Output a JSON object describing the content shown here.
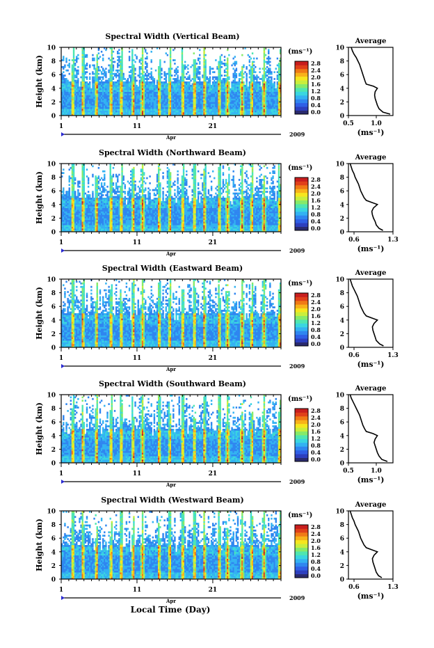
{
  "figure": {
    "x_common_label": "Local Time (Day)",
    "month_label": "Apr",
    "year_label": "2009",
    "x_ticks": [
      "1",
      "11",
      "21"
    ],
    "y_label": "Height (km)",
    "colorbar_unit": "(ms⁻¹)",
    "colorbar_ticks": [
      "0.0",
      "0.4",
      "0.8",
      "1.2",
      "1.6",
      "2.0",
      "2.4",
      "2.8"
    ],
    "avg_title": "Average",
    "avg_xunit": "(ms⁻¹)"
  },
  "colors": {
    "colormap": [
      "#2a2a6e",
      "#2d3fbf",
      "#2f5fe6",
      "#2f86f0",
      "#33b2f2",
      "#3ad6e0",
      "#4fe6b0",
      "#86ea6a",
      "#c9ee3c",
      "#f6e61e",
      "#f8b21a",
      "#f07a16",
      "#e0401a",
      "#c81e1e"
    ]
  },
  "chart_data": [
    {
      "type": "heatmap",
      "title": "Spectral Width (Vertical Beam)",
      "x_range_days": [
        1,
        30
      ],
      "ylim": [
        0,
        10
      ],
      "y_ticks": [
        "0",
        "2",
        "4",
        "6",
        "8",
        "10"
      ],
      "value_range": [
        0.0,
        2.8
      ],
      "average_profile": {
        "xlim": [
          0.5,
          1.3
        ],
        "x_ticks": [
          "0.5",
          "1.0"
        ],
        "height_km": [
          0.2,
          0.5,
          1,
          1.5,
          2,
          2.5,
          3,
          3.5,
          4,
          4.3,
          4.6,
          5,
          5.5,
          6,
          6.5,
          7,
          7.5,
          8,
          8.5,
          9,
          9.5,
          10
        ],
        "width": [
          1.25,
          1.12,
          1.05,
          1.02,
          1.0,
          0.98,
          0.97,
          0.98,
          1.02,
          0.95,
          0.82,
          0.8,
          0.78,
          0.76,
          0.74,
          0.72,
          0.7,
          0.67,
          0.64,
          0.6,
          0.57,
          0.55
        ]
      }
    },
    {
      "type": "heatmap",
      "title": "Spectral Width (Northward Beam)",
      "x_range_days": [
        1,
        30
      ],
      "ylim": [
        0,
        10
      ],
      "y_ticks": [
        "0",
        "2",
        "4",
        "6",
        "8",
        "10"
      ],
      "value_range": [
        0.0,
        2.8
      ],
      "average_profile": {
        "xlim": [
          0.5,
          1.3
        ],
        "x_ticks": [
          "0.6",
          "1.3"
        ],
        "height_km": [
          0.2,
          0.5,
          1,
          1.5,
          2,
          2.5,
          3,
          3.5,
          4,
          4.3,
          4.6,
          5,
          5.5,
          6,
          6.5,
          7,
          7.5,
          8,
          8.5,
          9,
          9.5,
          10
        ],
        "width": [
          1.12,
          1.05,
          1.0,
          0.98,
          0.95,
          0.93,
          0.92,
          0.95,
          1.02,
          0.92,
          0.82,
          0.78,
          0.75,
          0.72,
          0.7,
          0.68,
          0.65,
          0.62,
          0.6,
          0.57,
          0.55,
          0.53
        ]
      }
    },
    {
      "type": "heatmap",
      "title": "Spectral Width (Eastward Beam)",
      "x_range_days": [
        1,
        30
      ],
      "ylim": [
        0,
        10
      ],
      "y_ticks": [
        "0",
        "2",
        "4",
        "6",
        "8",
        "10"
      ],
      "value_range": [
        0.0,
        2.8
      ],
      "average_profile": {
        "xlim": [
          0.5,
          1.3
        ],
        "x_ticks": [
          "0.6",
          "1.3"
        ],
        "height_km": [
          0.2,
          0.5,
          1,
          1.5,
          2,
          2.5,
          3,
          3.5,
          4,
          4.3,
          4.6,
          5,
          5.5,
          6,
          6.5,
          7,
          7.5,
          8,
          8.5,
          9,
          9.5,
          10
        ],
        "width": [
          1.13,
          1.06,
          1.0,
          0.98,
          0.96,
          0.94,
          0.93,
          0.96,
          1.02,
          0.92,
          0.82,
          0.78,
          0.75,
          0.72,
          0.7,
          0.68,
          0.66,
          0.63,
          0.6,
          0.57,
          0.55,
          0.53
        ]
      }
    },
    {
      "type": "heatmap",
      "title": "Spectral Width (Southward Beam)",
      "x_range_days": [
        1,
        30
      ],
      "ylim": [
        0,
        10
      ],
      "y_ticks": [
        "0",
        "2",
        "4",
        "6",
        "8",
        "10"
      ],
      "value_range": [
        0.0,
        2.8
      ],
      "average_profile": {
        "xlim": [
          0.5,
          1.3
        ],
        "x_ticks": [
          "0.5",
          "1.0"
        ],
        "height_km": [
          0.2,
          0.5,
          1,
          1.5,
          2,
          2.5,
          3,
          3.5,
          4,
          4.3,
          4.6,
          5,
          5.5,
          6,
          6.5,
          7,
          7.5,
          8,
          8.5,
          9,
          9.5,
          10
        ],
        "width": [
          1.2,
          1.1,
          1.05,
          1.02,
          1.0,
          0.98,
          0.96,
          0.98,
          1.02,
          0.94,
          0.82,
          0.79,
          0.76,
          0.74,
          0.72,
          0.7,
          0.67,
          0.64,
          0.61,
          0.58,
          0.55,
          0.53
        ]
      }
    },
    {
      "type": "heatmap",
      "title": "Spectral Width (Westward Beam)",
      "x_range_days": [
        1,
        30
      ],
      "ylim": [
        0,
        10
      ],
      "y_ticks": [
        "0",
        "2",
        "4",
        "6",
        "8",
        "10"
      ],
      "value_range": [
        0.0,
        2.8
      ],
      "average_profile": {
        "xlim": [
          0.5,
          1.3
        ],
        "x_ticks": [
          "0.6",
          "1.3"
        ],
        "height_km": [
          0.2,
          0.5,
          1,
          1.5,
          2,
          2.5,
          3,
          3.5,
          4,
          4.3,
          4.6,
          5,
          5.5,
          6,
          6.5,
          7,
          7.5,
          8,
          8.5,
          9,
          9.5,
          10
        ],
        "width": [
          1.1,
          1.04,
          1.0,
          0.98,
          0.96,
          0.94,
          0.93,
          0.96,
          1.02,
          0.92,
          0.82,
          0.78,
          0.75,
          0.72,
          0.7,
          0.68,
          0.65,
          0.62,
          0.6,
          0.57,
          0.55,
          0.53
        ]
      }
    }
  ]
}
